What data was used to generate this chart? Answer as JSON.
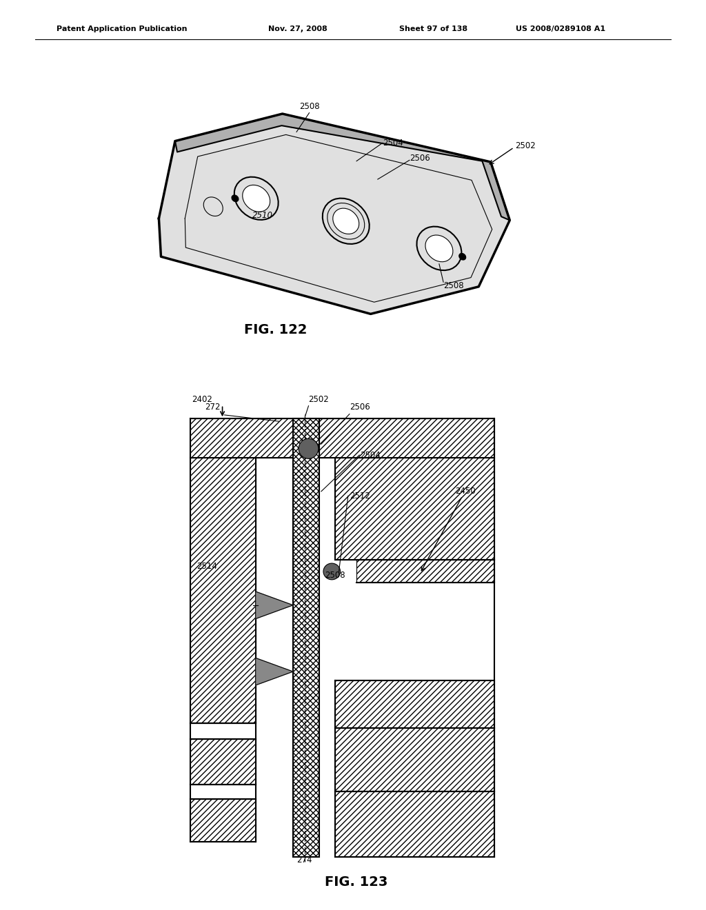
{
  "header_text": "Patent Application Publication",
  "header_date": "Nov. 27, 2008",
  "header_sheet": "Sheet 97 of 138",
  "header_patent": "US 2008/0289108 A1",
  "fig122_label": "FIG. 122",
  "fig123_label": "FIG. 123",
  "bg_color": "#ffffff",
  "line_color": "#000000"
}
